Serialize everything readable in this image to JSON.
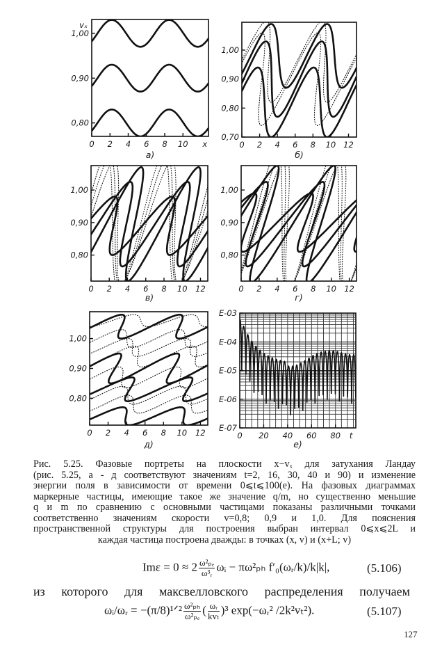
{
  "figure": {
    "panels": [
      {
        "label": "а)",
        "y_axis_label": "vₓ",
        "x_axis_label": "x",
        "y_ticks": [
          "1,00",
          "0,90",
          "0,80"
        ],
        "x_ticks": [
          "0",
          "2",
          "4",
          "6",
          "8",
          "10"
        ]
      },
      {
        "label": "б)",
        "y_axis_label": "",
        "x_axis_label": "",
        "y_ticks": [
          "1,00",
          "0,90",
          "0,80",
          "0,70"
        ],
        "x_ticks": [
          "0",
          "2",
          "4",
          "6",
          "8",
          "10",
          "12"
        ]
      },
      {
        "label": "в)",
        "y_axis_label": "",
        "x_axis_label": "",
        "y_ticks": [
          "1,00",
          "0,90",
          "0,80"
        ],
        "x_ticks": [
          "0",
          "2",
          "4",
          "6",
          "8",
          "10",
          "12"
        ]
      },
      {
        "label": "г)",
        "y_axis_label": "",
        "x_axis_label": "",
        "y_ticks": [
          "1,00",
          "0,90",
          "0,80"
        ],
        "x_ticks": [
          "0",
          "2",
          "4",
          "6",
          "8",
          "10",
          "12"
        ]
      },
      {
        "label": "д)",
        "y_axis_label": "",
        "x_axis_label": "",
        "y_ticks": [
          "1,00",
          "0,90",
          "0,80"
        ],
        "x_ticks": [
          "0",
          "2",
          "4",
          "6",
          "8",
          "10",
          "12"
        ]
      },
      {
        "label": "е)",
        "y_axis_label": "",
        "x_axis_label": "t",
        "y_ticks": [
          "E-03",
          "E-04",
          "E-05",
          "E-06",
          "E-07"
        ],
        "x_ticks": [
          "0",
          "20",
          "40",
          "60",
          "80"
        ],
        "y_scale": "log",
        "grid": true
      }
    ]
  },
  "caption": [
    "Рис. 5.25. Фазовые портреты на плоскости x−vₓ для затухания Ландау",
    "(рис. 5.25, а - д соответствуют значениям t=2, 16, 30, 40 и 90) и изменение",
    "энергии поля в зависимости от времени 0⩽t⩽100(е). На фазовых диаграммах",
    "маркерные частицы, имеющие такое же значение q/m, но существенно меньшие",
    "q и m по сравнению с основными частицами показаны различными точками",
    "соответственно значениям скорости v=0,8; 0,9 и 1,0. Для пояснения",
    "пространственной структуры для построения выбран интервал 0⩽x⩽2L и",
    "каждая частица построена дважды: в точках (x, v) и (x+L; v)"
  ],
  "equation_1": {
    "lhs": "Imε = 0 ≈ 2",
    "frac_num": "ω²ₚₑ",
    "frac_den": "ω³ᵣ",
    "rhs": "ωᵢ − πω²ₚₕ f′₀(ωᵣ/k)/k|k|,",
    "number": "(5.106)"
  },
  "paragraph": "из которого для максвелловского распределения получаем",
  "equation_2": {
    "lhs": "ωᵢ/ωᵣ = −(π/8)¹ᐟ²",
    "frac1_num": "ω²ₚₕ",
    "frac1_den": "ω²ₚₑ",
    "frac2_num": "ωᵣ",
    "frac2_den": "kvₜ",
    "rhs": ")³ exp(−ωᵣ² /2k²vₜ²).",
    "open": "(",
    "number": "(5.107)"
  },
  "page_number": "127"
}
